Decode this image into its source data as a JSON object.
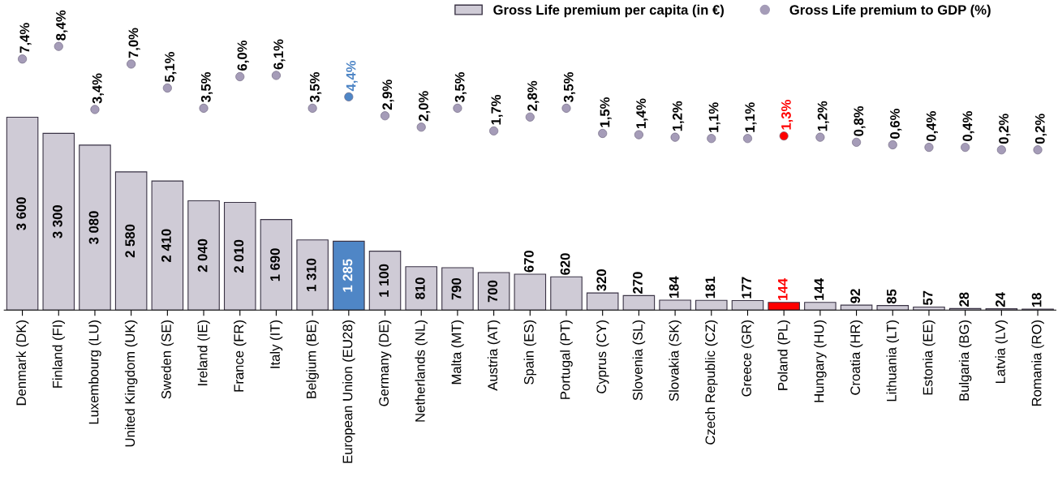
{
  "chart_data": {
    "type": "bar",
    "categories": [
      "Denmark (DK)",
      "Finland (FI)",
      "Luxembourg (LU)",
      "United Kingdom (UK)",
      "Sweden (SE)",
      "Ireland (IE)",
      "France (FR)",
      "Italy (IT)",
      "Belgium (BE)",
      "European Union (EU28)",
      "Germany (DE)",
      "Netherlands (NL)",
      "Malta (MT)",
      "Austria (AT)",
      "Spain (ES)",
      "Portugal (PT)",
      "Cyprus (CY)",
      "Slovenia (SL)",
      "Slovakia (SK)",
      "Czech Republic (CZ)",
      "Greece (GR)",
      "Poland (PL)",
      "Hungary (HU)",
      "Croatia (HR)",
      "Lithuania (LT)",
      "Estonia (EE)",
      "Bulgaria (BG)",
      "Latvia (LV)",
      "Romania (RO)"
    ],
    "series": [
      {
        "name": "Gross Life premium per capita (in €)",
        "color": "#cfcbd6",
        "colors": [
          "#cfcbd6",
          "#cfcbd6",
          "#cfcbd6",
          "#cfcbd6",
          "#cfcbd6",
          "#cfcbd6",
          "#cfcbd6",
          "#cfcbd6",
          "#cfcbd6",
          "#4f86c6",
          "#cfcbd6",
          "#cfcbd6",
          "#cfcbd6",
          "#cfcbd6",
          "#cfcbd6",
          "#cfcbd6",
          "#cfcbd6",
          "#cfcbd6",
          "#cfcbd6",
          "#cfcbd6",
          "#cfcbd6",
          "#ff0000",
          "#cfcbd6",
          "#cfcbd6",
          "#cfcbd6",
          "#cfcbd6",
          "#cfcbd6",
          "#cfcbd6",
          "#cfcbd6"
        ],
        "values": [
          3600,
          3300,
          3080,
          2580,
          2410,
          2040,
          2010,
          1690,
          1310,
          1285,
          1100,
          810,
          790,
          700,
          670,
          620,
          320,
          270,
          184,
          181,
          177,
          144,
          144,
          92,
          85,
          57,
          28,
          24,
          18
        ],
        "value_labels": [
          "3 600",
          "3 300",
          "3 080",
          "2 580",
          "2 410",
          "2 040",
          "2 010",
          "1 690",
          "1 310",
          "1 285",
          "1 100",
          "810",
          "790",
          "700",
          "670",
          "620",
          "320",
          "270",
          "184",
          "181",
          "177",
          "144",
          "144",
          "92",
          "85",
          "57",
          "28",
          "24",
          "18"
        ]
      },
      {
        "name": "Gross Life premium to GDP (%)",
        "type": "scatter",
        "axis": "y2",
        "color": "#a59cb8",
        "colors": [
          "#a59cb8",
          "#a59cb8",
          "#a59cb8",
          "#a59cb8",
          "#a59cb8",
          "#a59cb8",
          "#a59cb8",
          "#a59cb8",
          "#a59cb8",
          "#4f86c6",
          "#a59cb8",
          "#a59cb8",
          "#a59cb8",
          "#a59cb8",
          "#a59cb8",
          "#a59cb8",
          "#a59cb8",
          "#a59cb8",
          "#a59cb8",
          "#a59cb8",
          "#a59cb8",
          "#ff0000",
          "#a59cb8",
          "#a59cb8",
          "#a59cb8",
          "#a59cb8",
          "#a59cb8",
          "#a59cb8",
          "#a59cb8"
        ],
        "values": [
          7.4,
          8.4,
          3.4,
          7.0,
          5.1,
          3.5,
          6.0,
          6.1,
          3.5,
          4.4,
          2.9,
          2.0,
          3.5,
          1.7,
          2.8,
          3.5,
          1.5,
          1.4,
          1.2,
          1.1,
          1.1,
          1.3,
          1.2,
          0.8,
          0.6,
          0.4,
          0.4,
          0.2,
          0.2
        ],
        "value_labels": [
          "7,4%",
          "8,4%",
          "3,4%",
          "7,0%",
          "5,1%",
          "3,5%",
          "6,0%",
          "6,1%",
          "3,5%",
          "4,4%",
          "2,9%",
          "2,0%",
          "3,5%",
          "1,7%",
          "2,8%",
          "3,5%",
          "1,5%",
          "1,4%",
          "1,2%",
          "1,1%",
          "1,1%",
          "1,3%",
          "1,2%",
          "0,8%",
          "0,6%",
          "0,4%",
          "0,4%",
          "0,2%",
          "0,2%"
        ]
      }
    ],
    "ylim": [
      0,
      5700
    ],
    "y2lim": [
      -12.5,
      11.7
    ],
    "tick_labels": "x",
    "marker": "circle",
    "legend": "top right",
    "grid": false
  }
}
